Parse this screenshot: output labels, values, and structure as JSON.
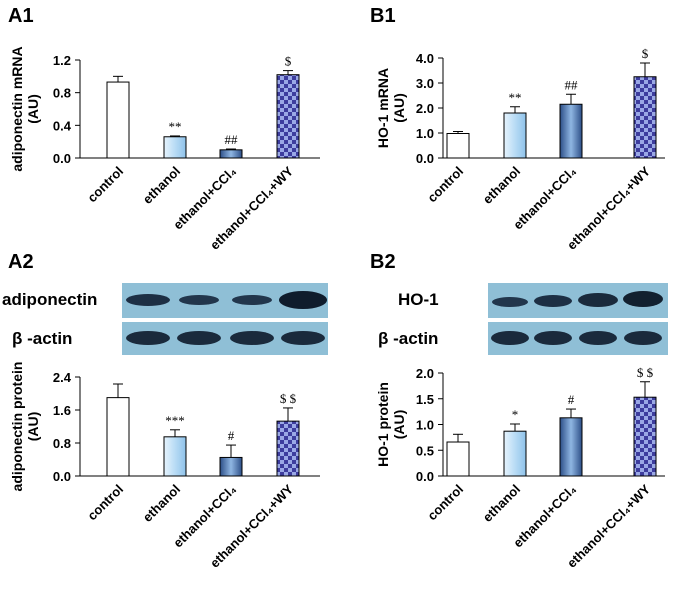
{
  "chart_data": [
    {
      "type": "bar",
      "panel": "A1",
      "ylabel": [
        "adiponectin  mRNA",
        "(AU)"
      ],
      "categories": [
        "control",
        "ethanol",
        "ethanol+CCl₄",
        "ethanol+CCl₄+WY"
      ],
      "values": [
        0.93,
        0.26,
        0.1,
        1.02
      ],
      "errors": [
        0.07,
        0.01,
        0.01,
        0.05
      ],
      "annotations": [
        null,
        "**",
        "##",
        "$"
      ],
      "colors": [
        "#ffffff",
        "#b9dcf5",
        "#5f8cc2",
        "#5b5bb5"
      ],
      "ylim": [
        0,
        1.2
      ],
      "yticks": [
        {
          "value": 0,
          "label": "0.0"
        },
        0.4,
        0.8,
        1.2
      ]
    },
    {
      "type": "bar",
      "panel": "B1",
      "ylabel": [
        "HO-1  mRNA",
        "(AU)"
      ],
      "categories": [
        "control",
        "ethanol",
        "ethanol+CCl₄",
        "ethanol+CCl₄+WY"
      ],
      "values": [
        0.98,
        1.8,
        2.15,
        3.25
      ],
      "errors": [
        0.08,
        0.25,
        0.4,
        0.55
      ],
      "annotations": [
        null,
        "**",
        "##",
        "$"
      ],
      "colors": [
        "#ffffff",
        "#b9dcf5",
        "#5f8cc2",
        "#5b5bb5"
      ],
      "ylim": [
        0,
        4
      ],
      "yticks": [
        {
          "value": 0,
          "label": "0.0"
        },
        {
          "value": 1,
          "label": "1.0"
        },
        {
          "value": 2,
          "label": "2.0"
        },
        {
          "value": 3,
          "label": "3.0"
        },
        {
          "value": 4,
          "label": "4.0"
        }
      ]
    },
    {
      "type": "bar",
      "panel": "A2",
      "ylabel": [
        "adiponectin protein",
        "(AU)"
      ],
      "categories": [
        "control",
        "ethanol",
        "ethanol+CCl₄",
        "ethanol+CCl₄+WY"
      ],
      "values": [
        1.9,
        0.95,
        0.45,
        1.33
      ],
      "errors": [
        0.33,
        0.17,
        0.3,
        0.32
      ],
      "annotations": [
        null,
        "***",
        "#",
        "$ $"
      ],
      "colors": [
        "#ffffff",
        "#b9dcf5",
        "#5f8cc2",
        "#5b5bb5"
      ],
      "ylim": [
        0,
        2.4
      ],
      "yticks": [
        {
          "value": 0,
          "label": "0.0"
        },
        0.8,
        1.6,
        2.4
      ]
    },
    {
      "type": "bar",
      "panel": "B2",
      "ylabel": [
        "HO-1 protein",
        "(AU)"
      ],
      "categories": [
        "control",
        "ethanol",
        "ethanol+CCl₄",
        "ethanol+CCl₄+WY"
      ],
      "values": [
        0.66,
        0.87,
        1.13,
        1.53
      ],
      "errors": [
        0.15,
        0.14,
        0.17,
        0.3
      ],
      "annotations": [
        null,
        "*",
        "#",
        "$ $"
      ],
      "colors": [
        "#ffffff",
        "#b9dcf5",
        "#5f8cc2",
        "#5b5bb5"
      ],
      "ylim": [
        0,
        2
      ],
      "yticks": [
        {
          "value": 0,
          "label": "0.0"
        },
        0.5,
        {
          "value": 1,
          "label": "1.0"
        },
        1.5,
        {
          "value": 2,
          "label": "2.0"
        }
      ]
    }
  ],
  "blots": [
    {
      "target": "adiponectin",
      "control": "β -actin"
    },
    {
      "target": "HO-1",
      "control": "β -actin"
    }
  ]
}
